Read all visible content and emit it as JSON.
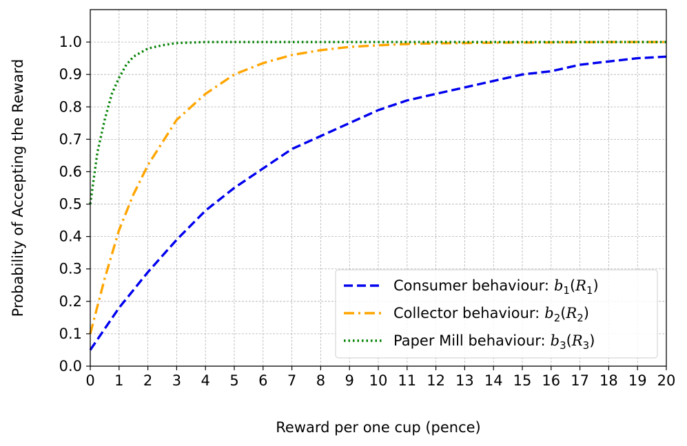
{
  "chart_data": {
    "type": "line",
    "xlabel": "Reward per one cup (pence)",
    "ylabel": "Probability of Accepting the Reward",
    "xlim": [
      0,
      20
    ],
    "ylim": [
      0,
      1.1
    ],
    "x_ticks": [
      0,
      1,
      2,
      3,
      4,
      5,
      6,
      7,
      8,
      9,
      10,
      11,
      12,
      13,
      14,
      15,
      16,
      17,
      18,
      19,
      20
    ],
    "y_ticks": [
      "0.0",
      "0.1",
      "0.2",
      "0.3",
      "0.4",
      "0.5",
      "0.6",
      "0.7",
      "0.8",
      "0.9",
      "1.0"
    ],
    "grid": true,
    "legend_position": "lower-right",
    "series": [
      {
        "name": "Consumer behaviour:",
        "math": {
          "b": "b",
          "bs": "1",
          "r": "R",
          "rs": "1"
        },
        "color": "#0000ee",
        "style": "dashed",
        "x": [
          0,
          1,
          2,
          3,
          4,
          5,
          6,
          7,
          8,
          9,
          10,
          11,
          12,
          13,
          14,
          15,
          16,
          17,
          18,
          19,
          20
        ],
        "values": [
          0.05,
          0.18,
          0.29,
          0.39,
          0.48,
          0.55,
          0.61,
          0.67,
          0.71,
          0.75,
          0.79,
          0.82,
          0.84,
          0.86,
          0.88,
          0.9,
          0.91,
          0.93,
          0.94,
          0.95,
          0.955
        ]
      },
      {
        "name": "Collector behaviour:",
        "math": {
          "b": "b",
          "bs": "2",
          "r": "R",
          "rs": "2"
        },
        "color": "#ffa500",
        "style": "dashdot",
        "x": [
          0,
          0.5,
          1,
          1.5,
          2,
          3,
          4,
          5,
          6,
          7,
          8,
          9,
          10,
          11,
          12,
          14,
          16,
          18,
          20
        ],
        "values": [
          0.1,
          0.27,
          0.42,
          0.53,
          0.62,
          0.76,
          0.84,
          0.9,
          0.935,
          0.96,
          0.975,
          0.985,
          0.99,
          0.994,
          0.996,
          0.998,
          0.999,
          1.0,
          1.0
        ]
      },
      {
        "name": "Paper Mill behaviour:",
        "math": {
          "b": "b",
          "bs": "3",
          "r": "R",
          "rs": "3"
        },
        "color": "#008000",
        "style": "dotted",
        "x": [
          0,
          0.25,
          0.5,
          0.75,
          1,
          1.25,
          1.5,
          2,
          2.5,
          3,
          4,
          5,
          20
        ],
        "values": [
          0.5,
          0.66,
          0.76,
          0.84,
          0.89,
          0.93,
          0.955,
          0.98,
          0.99,
          0.997,
          1.0,
          1.0,
          1.0
        ]
      }
    ]
  }
}
